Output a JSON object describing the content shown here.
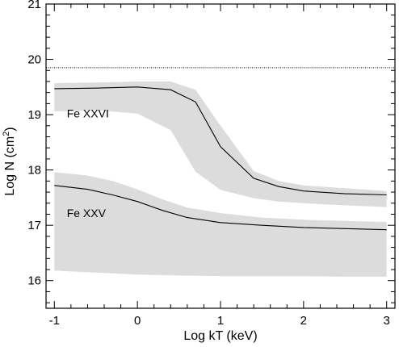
{
  "chart_data": {
    "type": "line",
    "xlabel": "Log kT (keV)",
    "ylabel_main": "Log N (cm",
    "ylabel_sup": "2",
    "ylabel_end": ")",
    "xlim": [
      -1.1,
      3.1
    ],
    "ylim": [
      15.5,
      21.0
    ],
    "xticks": [
      -1,
      0,
      1,
      2,
      3
    ],
    "xtick_labels": [
      "-1",
      "0",
      "1",
      "2",
      "3"
    ],
    "yticks": [
      16,
      17,
      18,
      19,
      20,
      21
    ],
    "ytick_labels": [
      "16",
      "17",
      "18",
      "19",
      "20",
      "21"
    ],
    "grid": false,
    "reference_line": {
      "y": 19.85,
      "style": "dotted"
    },
    "band_color": "#dcdcdc",
    "line_color": "#000000",
    "series": [
      {
        "name": "Fe XXVI",
        "x": [
          -1.0,
          -0.5,
          0.0,
          0.4,
          0.7,
          1.0,
          1.4,
          1.7,
          2.0,
          2.5,
          3.0
        ],
        "y": [
          19.47,
          19.48,
          19.5,
          19.45,
          19.23,
          18.42,
          17.85,
          17.7,
          17.62,
          17.57,
          17.55
        ],
        "band_upper": [
          19.57,
          19.58,
          19.6,
          19.6,
          19.45,
          18.8,
          17.98,
          17.8,
          17.72,
          17.67,
          17.62
        ],
        "band_lower": [
          19.06,
          19.08,
          19.02,
          18.72,
          17.97,
          17.64,
          17.49,
          17.43,
          17.4,
          17.36,
          17.33
        ]
      },
      {
        "name": "Fe XXV",
        "x": [
          -1.0,
          -0.6,
          -0.3,
          0.0,
          0.3,
          0.6,
          1.0,
          1.5,
          2.0,
          2.5,
          3.0
        ],
        "y": [
          17.72,
          17.65,
          17.55,
          17.43,
          17.27,
          17.14,
          17.05,
          17.0,
          16.96,
          16.94,
          16.92
        ],
        "band_upper": [
          17.96,
          17.9,
          17.8,
          17.65,
          17.47,
          17.32,
          17.22,
          17.14,
          17.1,
          17.08,
          17.06
        ],
        "band_lower": [
          16.18,
          16.15,
          16.13,
          16.11,
          16.1,
          16.09,
          16.08,
          16.08,
          16.08,
          16.07,
          16.07
        ]
      }
    ]
  }
}
